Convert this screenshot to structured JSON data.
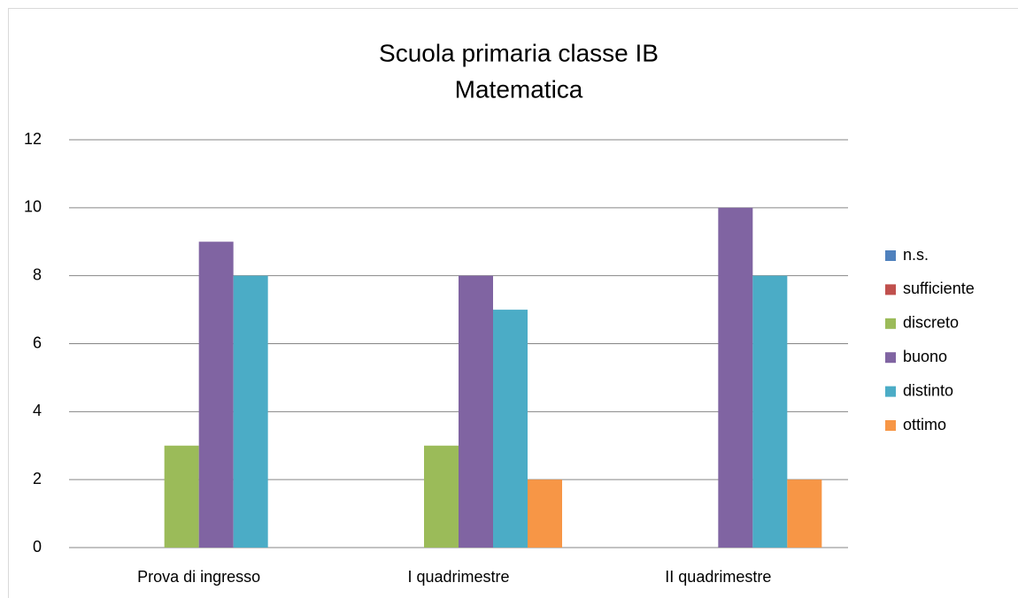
{
  "chart_data": {
    "type": "bar",
    "title": "Scuola primaria classe IB",
    "subtitle": "Matematica",
    "categories": [
      "Prova di ingresso",
      "I quadrimestre",
      "II quadrimestre"
    ],
    "series": [
      {
        "name": "n.s.",
        "color": "#4f81bd",
        "values": [
          0,
          0,
          0
        ]
      },
      {
        "name": "sufficiente",
        "color": "#c0504d",
        "values": [
          0,
          0,
          0
        ]
      },
      {
        "name": "discreto",
        "color": "#9bbb59",
        "values": [
          3,
          3,
          0
        ]
      },
      {
        "name": "buono",
        "color": "#8064a2",
        "values": [
          9,
          8,
          10
        ]
      },
      {
        "name": "distinto",
        "color": "#4bacc6",
        "values": [
          8,
          7,
          8
        ]
      },
      {
        "name": "ottimo",
        "color": "#f79646",
        "values": [
          0,
          2,
          2
        ]
      }
    ],
    "ylim": [
      0,
      12
    ],
    "yticks": [
      0,
      2,
      4,
      6,
      8,
      10,
      12
    ],
    "grid": true,
    "legend": "right"
  }
}
